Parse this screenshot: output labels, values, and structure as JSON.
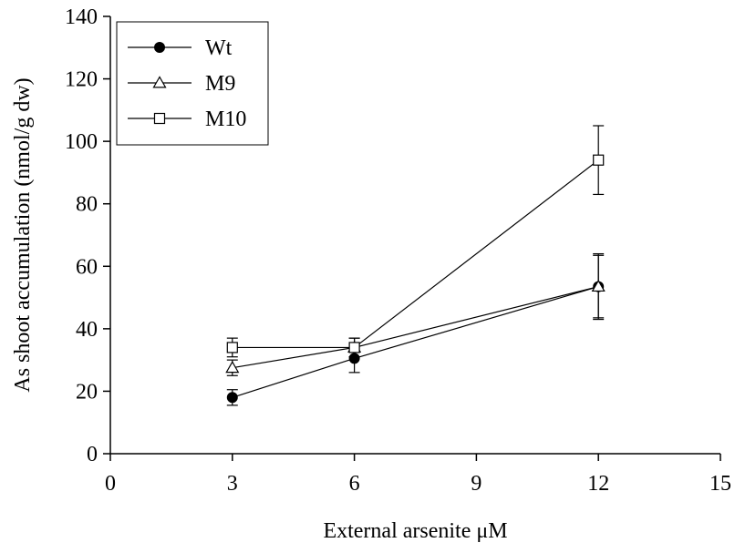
{
  "chart_data": {
    "type": "line",
    "title": "",
    "xlabel": "External arsenite μM",
    "ylabel": "As shoot accumulation (nmol/g dw)",
    "xlim": [
      0,
      15
    ],
    "ylim": [
      0,
      140
    ],
    "xticks": [
      0,
      3,
      6,
      9,
      12,
      15
    ],
    "yticks": [
      0,
      20,
      40,
      60,
      80,
      100,
      120,
      140
    ],
    "grid": false,
    "legend_position": "top-left",
    "series": [
      {
        "name": "Wt",
        "marker": "filled-circle",
        "x": [
          3,
          6,
          12
        ],
        "y": [
          18,
          30.5,
          53.5
        ],
        "err": [
          2.5,
          4.5,
          10
        ]
      },
      {
        "name": "M9",
        "marker": "open-triangle",
        "x": [
          3,
          6,
          12
        ],
        "y": [
          27.5,
          34,
          53.5
        ],
        "err": [
          2.5,
          3,
          10.5
        ]
      },
      {
        "name": "M10",
        "marker": "open-square",
        "x": [
          3,
          6,
          12
        ],
        "y": [
          34,
          34,
          94
        ],
        "err": [
          3,
          3,
          11
        ]
      }
    ]
  }
}
